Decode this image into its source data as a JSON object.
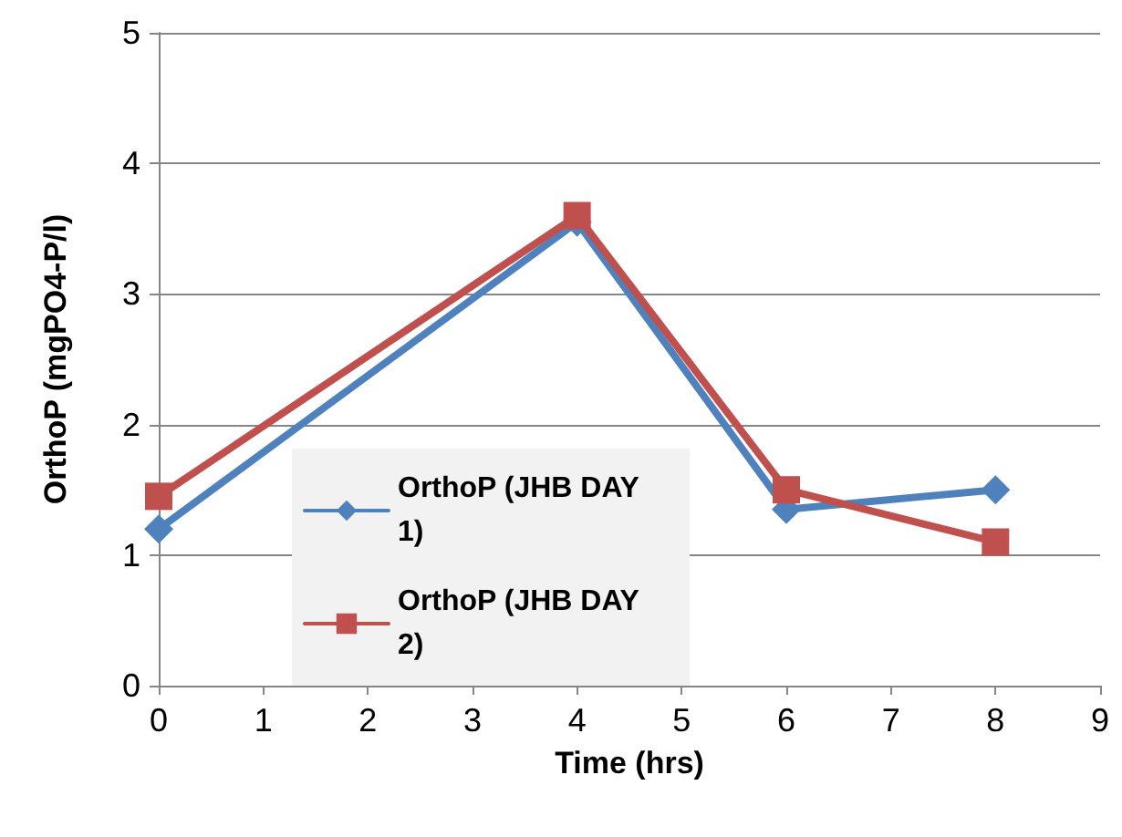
{
  "chart_data": {
    "type": "line",
    "xlabel": "Time (hrs)",
    "ylabel": "OrthoP (mgPO4-P/l)",
    "x": [
      0,
      4,
      6,
      8
    ],
    "series": [
      {
        "name": "OrthoP (JHB DAY 1)",
        "color": "#4f81bd",
        "marker": "diamond",
        "values": [
          1.2,
          3.55,
          1.35,
          1.5
        ]
      },
      {
        "name": "OrthoP (JHB DAY 2)",
        "color": "#c0504d",
        "marker": "square",
        "values": [
          1.45,
          3.6,
          1.5,
          1.1
        ]
      }
    ],
    "xlim": [
      0,
      9
    ],
    "xticks": [
      0,
      1,
      2,
      3,
      4,
      5,
      6,
      7,
      8,
      9
    ],
    "ylim": [
      0,
      5
    ],
    "yticks": [
      0,
      1,
      2,
      3,
      4,
      5
    ],
    "grid": "y",
    "legend": "bottom left",
    "line_style": "solid"
  }
}
